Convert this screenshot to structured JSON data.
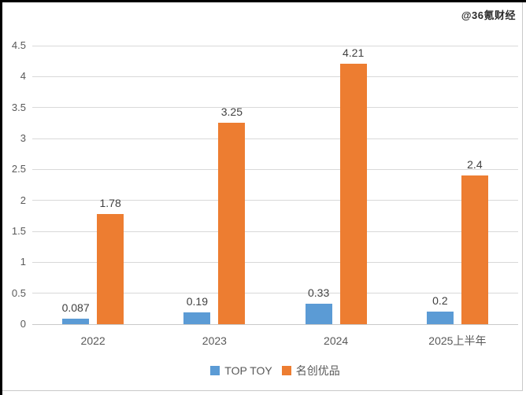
{
  "watermark": "@36氪财经",
  "colors": {
    "series_top_toy": "#5B9BD5",
    "series_miniso": "#ED7D31",
    "gridline": "#d9d9d9",
    "axis_line": "#c9c9c9",
    "tick_text": "#595959",
    "value_text": "#404040"
  },
  "chart_data": {
    "type": "bar",
    "title": "",
    "xlabel": "",
    "ylabel": "",
    "categories": [
      "2022",
      "2023",
      "2024",
      "2025上半年"
    ],
    "series": [
      {
        "name": "TOP TOY",
        "color": "#5B9BD5",
        "values": [
          0.087,
          0.19,
          0.33,
          0.2
        ],
        "labels": [
          "0.087",
          "0.19",
          "0.33",
          "0.2"
        ]
      },
      {
        "name": "名创优品",
        "color": "#ED7D31",
        "values": [
          1.78,
          3.25,
          4.21,
          2.4
        ],
        "labels": [
          "1.78",
          "3.25",
          "4.21",
          "2.4"
        ]
      }
    ],
    "ylim": [
      0,
      4.5
    ],
    "ytick_step": 0.5,
    "ytick_labels": [
      "0",
      "0.5",
      "1",
      "1.5",
      "2",
      "2.5",
      "3",
      "3.5",
      "4",
      "4.5"
    ],
    "grid": true,
    "legend_position": "bottom"
  }
}
